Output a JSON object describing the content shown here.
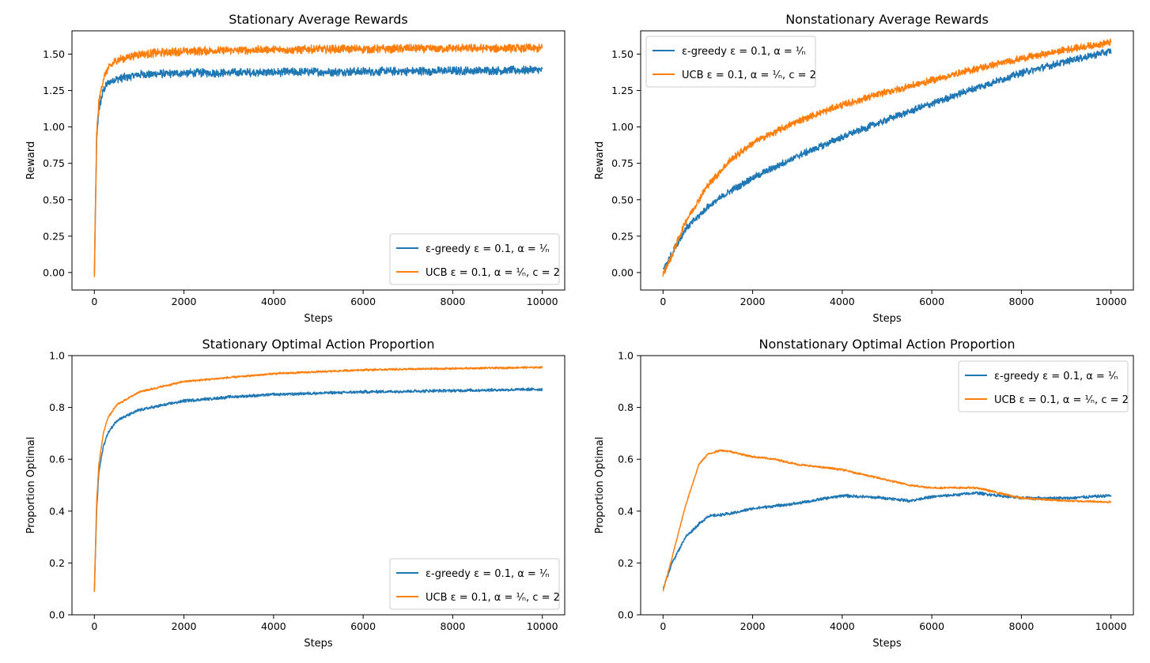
{
  "colors": {
    "egreedy": "#1f77b4",
    "ucb": "#ff7f0e"
  },
  "chart_data": [
    {
      "type": "line",
      "title": "Stationary Average Rewards",
      "xlabel": "Steps",
      "ylabel": "Reward",
      "xlim": [
        -500,
        10500
      ],
      "ylim": [
        -0.12,
        1.66
      ],
      "xticks": [
        0,
        2000,
        4000,
        6000,
        8000,
        10000
      ],
      "xtick_labels": [
        "0",
        "2000",
        "4000",
        "6000",
        "8000",
        "10000"
      ],
      "yticks": [
        0,
        0.25,
        0.5,
        0.75,
        1.0,
        1.25,
        1.5
      ],
      "ytick_labels": [
        "0.00",
        "0.25",
        "0.50",
        "0.75",
        "1.00",
        "1.25",
        "1.50"
      ],
      "legend_position": "lower-right",
      "grid": false,
      "series": [
        {
          "name_label": "ε-greedy ε = 0.1, α = ¹⁄ₙ",
          "color": "#1f77b4",
          "noise": 0.03,
          "x": [
            0,
            50,
            100,
            200,
            300,
            500,
            1000,
            2000,
            4000,
            6000,
            8000,
            10000
          ],
          "y": [
            -0.02,
            0.9,
            1.12,
            1.25,
            1.3,
            1.33,
            1.36,
            1.37,
            1.375,
            1.38,
            1.385,
            1.39
          ]
        },
        {
          "name_label": "UCB ε = 0.1, α = ¹⁄ₙ, c = 2",
          "color": "#ff7f0e",
          "noise": 0.03,
          "x": [
            0,
            50,
            100,
            200,
            300,
            500,
            1000,
            2000,
            4000,
            6000,
            8000,
            10000
          ],
          "y": [
            -0.02,
            0.95,
            1.17,
            1.33,
            1.4,
            1.46,
            1.5,
            1.52,
            1.53,
            1.535,
            1.54,
            1.54
          ]
        }
      ]
    },
    {
      "type": "line",
      "title": "Nonstationary Average Rewards",
      "xlabel": "Steps",
      "ylabel": "Reward",
      "xlim": [
        -500,
        10500
      ],
      "ylim": [
        -0.12,
        1.66
      ],
      "xticks": [
        0,
        2000,
        4000,
        6000,
        8000,
        10000
      ],
      "xtick_labels": [
        "0",
        "2000",
        "4000",
        "6000",
        "8000",
        "10000"
      ],
      "yticks": [
        0,
        0.25,
        0.5,
        0.75,
        1.0,
        1.25,
        1.5
      ],
      "ytick_labels": [
        "0.00",
        "0.25",
        "0.50",
        "0.75",
        "1.00",
        "1.25",
        "1.50"
      ],
      "legend_position": "upper-left",
      "grid": false,
      "series": [
        {
          "name_label": "ε-greedy ε = 0.1, α = ¹⁄ₙ",
          "color": "#1f77b4",
          "noise": 0.025,
          "x": [
            0,
            200,
            500,
            1000,
            1500,
            2000,
            3000,
            4000,
            5000,
            6000,
            7000,
            8000,
            9000,
            10000
          ],
          "y": [
            0.02,
            0.13,
            0.3,
            0.45,
            0.56,
            0.65,
            0.8,
            0.93,
            1.05,
            1.16,
            1.27,
            1.37,
            1.45,
            1.52
          ]
        },
        {
          "name_label": "UCB ε = 0.1, α = ¹⁄ₙ, c = 2",
          "color": "#ff7f0e",
          "noise": 0.025,
          "x": [
            0,
            200,
            500,
            1000,
            1500,
            2000,
            3000,
            4000,
            5000,
            6000,
            7000,
            8000,
            9000,
            10000
          ],
          "y": [
            -0.01,
            0.12,
            0.35,
            0.6,
            0.77,
            0.89,
            1.04,
            1.15,
            1.24,
            1.32,
            1.4,
            1.47,
            1.53,
            1.58
          ]
        }
      ]
    },
    {
      "type": "line",
      "title": "Stationary Optimal Action Proportion",
      "xlabel": "Steps",
      "ylabel": "Proportion Optimal",
      "xlim": [
        -500,
        10500
      ],
      "ylim": [
        0,
        1
      ],
      "xticks": [
        0,
        2000,
        4000,
        6000,
        8000,
        10000
      ],
      "xtick_labels": [
        "0",
        "2000",
        "4000",
        "6000",
        "8000",
        "10000"
      ],
      "yticks": [
        0,
        0.2,
        0.4,
        0.6,
        0.8,
        1.0
      ],
      "ytick_labels": [
        "0.0",
        "0.2",
        "0.4",
        "0.6",
        "0.8",
        "1.0"
      ],
      "legend_position": "lower-right",
      "grid": false,
      "series": [
        {
          "name_label": "ε-greedy ε = 0.1, α = ¹⁄ₙ",
          "color": "#1f77b4",
          "noise": 0.006,
          "x": [
            0,
            50,
            100,
            200,
            300,
            500,
            1000,
            2000,
            3000,
            4000,
            6000,
            8000,
            10000
          ],
          "y": [
            0.09,
            0.4,
            0.55,
            0.65,
            0.7,
            0.75,
            0.79,
            0.825,
            0.84,
            0.85,
            0.86,
            0.865,
            0.87
          ]
        },
        {
          "name_label": "UCB ε = 0.1, α = ¹⁄ₙ, c = 2",
          "color": "#ff7f0e",
          "noise": 0.004,
          "x": [
            0,
            50,
            100,
            200,
            300,
            500,
            1000,
            2000,
            3000,
            4000,
            6000,
            8000,
            10000
          ],
          "y": [
            0.09,
            0.43,
            0.58,
            0.7,
            0.76,
            0.81,
            0.86,
            0.9,
            0.915,
            0.93,
            0.945,
            0.95,
            0.955
          ]
        }
      ]
    },
    {
      "type": "line",
      "title": "Nonstationary Optimal Action Proportion",
      "xlabel": "Steps",
      "ylabel": "Proportion Optimal",
      "xlim": [
        -500,
        10500
      ],
      "ylim": [
        0,
        1
      ],
      "xticks": [
        0,
        2000,
        4000,
        6000,
        8000,
        10000
      ],
      "xtick_labels": [
        "0",
        "2000",
        "4000",
        "6000",
        "8000",
        "10000"
      ],
      "yticks": [
        0,
        0.2,
        0.4,
        0.6,
        0.8,
        1.0
      ],
      "ytick_labels": [
        "0.0",
        "0.2",
        "0.4",
        "0.6",
        "0.8",
        "1.0"
      ],
      "legend_position": "upper-right",
      "grid": false,
      "series": [
        {
          "name_label": "ε-greedy ε = 0.1, α = ¹⁄ₙ",
          "color": "#1f77b4",
          "noise": 0.006,
          "x": [
            0,
            200,
            500,
            800,
            1000,
            1500,
            2000,
            3000,
            4000,
            5000,
            5500,
            6000,
            7000,
            8000,
            9000,
            10000
          ],
          "y": [
            0.1,
            0.2,
            0.3,
            0.35,
            0.38,
            0.39,
            0.41,
            0.43,
            0.46,
            0.45,
            0.44,
            0.455,
            0.47,
            0.45,
            0.45,
            0.46
          ]
        },
        {
          "name_label": "UCB ε = 0.1, α = ¹⁄ₙ, c = 2",
          "color": "#ff7f0e",
          "noise": 0.004,
          "x": [
            0,
            200,
            500,
            800,
            1000,
            1300,
            1500,
            2000,
            2500,
            3000,
            3500,
            4000,
            4500,
            5000,
            5500,
            6000,
            7000,
            8000,
            9000,
            10000
          ],
          "y": [
            0.09,
            0.22,
            0.42,
            0.58,
            0.62,
            0.635,
            0.63,
            0.61,
            0.6,
            0.58,
            0.57,
            0.56,
            0.54,
            0.52,
            0.5,
            0.49,
            0.49,
            0.45,
            0.44,
            0.435
          ]
        }
      ]
    }
  ]
}
